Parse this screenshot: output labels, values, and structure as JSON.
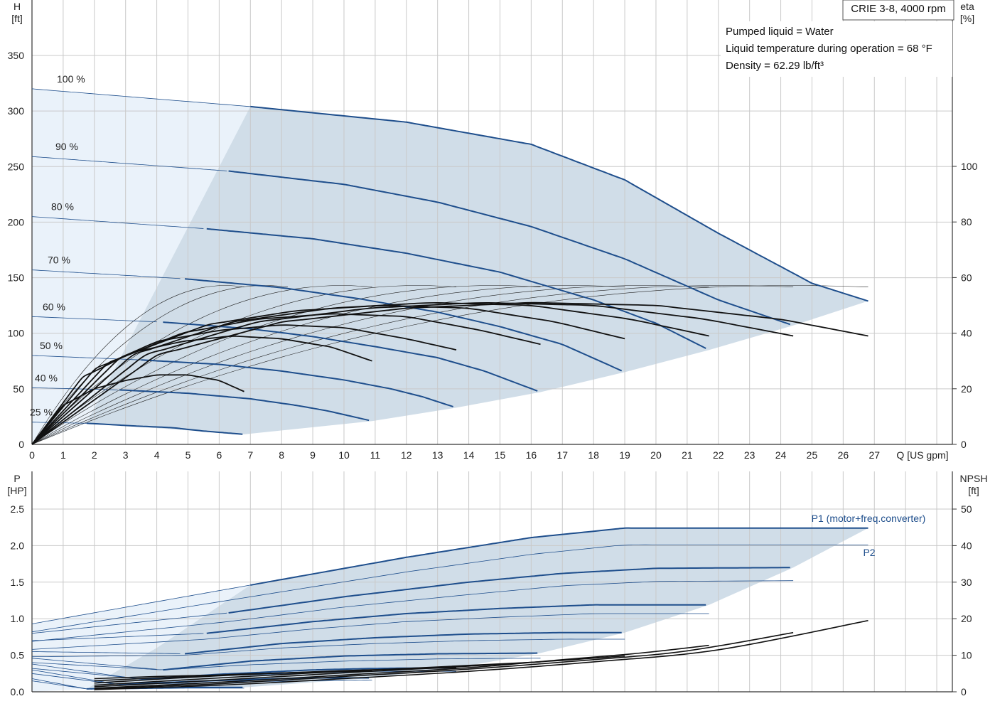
{
  "chart_data": [
    {
      "type": "line",
      "name": "head-efficiency",
      "title": "CRIE 3-8, 4000 rpm",
      "info_lines": [
        "Pumped liquid = Water",
        "Liquid temperature during operation = 68 °F",
        "Density = 62.29 lb/ft³"
      ],
      "xlabel": "Q [US gpm]",
      "y_left_label": [
        "H",
        "[ft]"
      ],
      "y_right_label": [
        "eta",
        "[%]"
      ],
      "xlim": [
        0,
        29.5
      ],
      "ylim_left": [
        0,
        350
      ],
      "ylim_right": [
        0,
        140
      ],
      "x_ticks": [
        0,
        1,
        2,
        3,
        4,
        5,
        6,
        7,
        8,
        9,
        10,
        11,
        12,
        13,
        14,
        15,
        16,
        17,
        18,
        19,
        20,
        21,
        22,
        23,
        24,
        25,
        26,
        27
      ],
      "y_left_ticks": [
        0,
        50,
        100,
        150,
        200,
        250,
        300,
        350
      ],
      "y_right_ticks": [
        0,
        20,
        40,
        60,
        80,
        100
      ],
      "grid": true,
      "speed_labels": [
        "100 %",
        "90 %",
        "80 %",
        "70 %",
        "60 %",
        "50 %",
        "40 %",
        "25 %"
      ],
      "head_curves": [
        {
          "label": "100 %",
          "x": [
            0,
            7,
            12,
            16,
            19,
            22,
            25,
            26.8
          ],
          "y": [
            320,
            304,
            290,
            270,
            238,
            190,
            145,
            129
          ],
          "x_start_bold": 7
        },
        {
          "label": "90 %",
          "x": [
            0,
            6.3,
            10,
            13,
            16,
            19,
            22,
            24.4
          ],
          "y": [
            259,
            246,
            234,
            218,
            196,
            167,
            130,
            107
          ],
          "x_start_bold": 6.3
        },
        {
          "label": "80 %",
          "x": [
            0,
            5.6,
            9,
            12,
            15,
            18,
            20,
            21.7
          ],
          "y": [
            205,
            194,
            185,
            172,
            155,
            130,
            109,
            85
          ],
          "x_start_bold": 5.6
        },
        {
          "label": "70 %",
          "x": [
            0,
            4.9,
            8,
            10.5,
            13,
            15,
            17,
            19
          ],
          "y": [
            157,
            149,
            141,
            131,
            119,
            106,
            90,
            65
          ],
          "x_start_bold": 4.9
        },
        {
          "label": "60 %",
          "x": [
            0,
            4.2,
            7,
            9,
            11,
            13,
            14.5,
            16.3
          ],
          "y": [
            115,
            110,
            104,
            97,
            88,
            78,
            66,
            47
          ],
          "x_start_bold": 4.2
        },
        {
          "label": "50 %",
          "x": [
            0,
            3.5,
            6,
            8,
            10,
            11.5,
            12.5,
            13.6
          ],
          "y": [
            80,
            76,
            72,
            66,
            58,
            50,
            43,
            33
          ],
          "x_start_bold": 3.5
        },
        {
          "label": "40 %",
          "x": [
            0,
            2.8,
            5,
            7,
            8.5,
            9.5,
            10.9
          ],
          "y": [
            51,
            49,
            46,
            41,
            35,
            30,
            21
          ],
          "x_start_bold": 2.8
        },
        {
          "label": "25 %",
          "x": [
            0,
            1.75,
            3,
            4.5,
            5.5,
            6.8
          ],
          "y": [
            20,
            19,
            17,
            15,
            12,
            9
          ],
          "x_start_bold": 1.75
        }
      ],
      "operating_area": {
        "x": [
          7,
          12,
          16,
          19,
          22,
          25,
          26.8,
          24.4,
          21.7,
          19,
          16.3,
          13.6,
          10.9,
          6.8,
          1.75,
          4,
          7
        ],
        "y": [
          304,
          290,
          270,
          238,
          190,
          145,
          129,
          107,
          85,
          65,
          47,
          33,
          21,
          9,
          19,
          100,
          304
        ]
      },
      "efficiency_curves": [
        {
          "label": "100 %",
          "x": [
            0,
            4,
            8,
            12,
            16,
            20,
            24,
            26.8
          ],
          "eta": [
            0,
            32,
            44,
            49,
            51,
            50,
            45,
            39
          ]
        },
        {
          "label": "90 %",
          "x": [
            0,
            3.6,
            7.2,
            10.8,
            14.4,
            18,
            21.6,
            24.4
          ],
          "eta": [
            0,
            32,
            44,
            49,
            51,
            50,
            45,
            39
          ]
        },
        {
          "label": "80 %",
          "x": [
            0,
            3.2,
            6.4,
            9.6,
            12.8,
            16,
            19.2,
            21.7
          ],
          "eta": [
            0,
            32,
            44,
            49,
            51,
            50,
            45,
            39
          ]
        },
        {
          "label": "70 %",
          "x": [
            0,
            2.8,
            5.6,
            8.4,
            11.2,
            14,
            16.8,
            19
          ],
          "eta": [
            0,
            31,
            43,
            48,
            50,
            49,
            44,
            38
          ]
        },
        {
          "label": "60 %",
          "x": [
            0,
            2.4,
            4.8,
            7.2,
            9.6,
            12,
            14.4,
            16.3
          ],
          "eta": [
            0,
            29,
            40,
            45,
            47,
            46,
            41,
            36
          ]
        },
        {
          "label": "50 %",
          "x": [
            0,
            2,
            4,
            6,
            8,
            10,
            12,
            13.6
          ],
          "eta": [
            0,
            27,
            37,
            41,
            43,
            42,
            38,
            34
          ]
        },
        {
          "label": "40 %",
          "x": [
            0,
            1.6,
            3.2,
            4.8,
            6.4,
            8,
            9.6,
            10.9
          ],
          "eta": [
            0,
            24,
            33,
            37,
            39,
            38,
            35,
            30
          ]
        },
        {
          "label": "25 %",
          "x": [
            0,
            1,
            2,
            3,
            4,
            5,
            6,
            6.8
          ],
          "eta": [
            0,
            14,
            20,
            23,
            25,
            25,
            23,
            19
          ]
        }
      ],
      "thin_curves_x_ends": [
        26.8,
        24.4,
        21.7,
        19,
        16.3,
        13.6,
        10.9,
        8.2,
        6.8
      ]
    },
    {
      "type": "line",
      "name": "power-npsh",
      "xlim": [
        0,
        29.5
      ],
      "y_left_label": [
        "P",
        "[HP]"
      ],
      "y_right_label": [
        "NPSH",
        "[ft]"
      ],
      "ylim_left": [
        0,
        2.5
      ],
      "ylim_right": [
        0,
        50
      ],
      "y_left_ticks": [
        "0.0",
        "0.5",
        "1.0",
        "1.5",
        "2.0",
        "2.5"
      ],
      "y_right_ticks": [
        0,
        10,
        20,
        30,
        40,
        50
      ],
      "p1_label": "P1 (motor+freq.converter)",
      "p2_label": "P2",
      "p1_curves": [
        {
          "label": "100 %",
          "x": [
            0,
            7,
            12,
            16,
            19,
            22,
            26.8
          ],
          "y": [
            0.93,
            1.46,
            1.84,
            2.11,
            2.24,
            2.24,
            2.24
          ],
          "x_start_bold": 7
        },
        {
          "label": "90 %",
          "x": [
            0,
            6.3,
            10,
            14,
            17,
            20,
            24.4
          ],
          "y": [
            0.8,
            1.08,
            1.3,
            1.5,
            1.62,
            1.69,
            1.7
          ],
          "x_start_bold": 6.3
        },
        {
          "label": "80 %",
          "x": [
            0,
            5.6,
            9,
            12,
            15,
            18,
            21.7
          ],
          "y": [
            0.7,
            0.8,
            0.96,
            1.07,
            1.14,
            1.19,
            1.19
          ],
          "x_start_bold": 5.6
        },
        {
          "label": "70 %",
          "x": [
            0,
            4.9,
            8,
            11,
            14,
            17,
            19
          ],
          "y": [
            0.55,
            0.52,
            0.66,
            0.74,
            0.79,
            0.81,
            0.81
          ],
          "x_start_bold": 4.9
        },
        {
          "label": "60 %",
          "x": [
            0,
            4.2,
            7,
            10,
            13,
            16.3
          ],
          "y": [
            0.46,
            0.3,
            0.42,
            0.49,
            0.52,
            0.53
          ],
          "x_start_bold": 4.2
        },
        {
          "label": "50 %",
          "x": [
            0,
            3.5,
            6,
            9,
            11,
            13.6
          ],
          "y": [
            0.38,
            0.17,
            0.24,
            0.3,
            0.32,
            0.33
          ],
          "x_start_bold": 3.5
        },
        {
          "label": "40 %",
          "x": [
            0,
            2.8,
            5,
            7,
            9,
            10.9
          ],
          "y": [
            0.3,
            0.1,
            0.14,
            0.17,
            0.19,
            0.19
          ],
          "x_start_bold": 2.8
        },
        {
          "label": "25 %",
          "x": [
            0,
            1.75,
            3,
            5,
            6.8
          ],
          "y": [
            0.18,
            0.04,
            0.05,
            0.06,
            0.06
          ],
          "x_start_bold": 1.75
        }
      ],
      "p2_curves": [
        {
          "label": "100 %",
          "x": [
            0,
            7,
            12,
            16,
            19,
            22,
            26.8
          ],
          "y": [
            0.82,
            1.3,
            1.64,
            1.88,
            2.01,
            2.01,
            2.01
          ]
        },
        {
          "label": "90 %",
          "x": [
            0,
            6.3,
            10,
            14,
            17,
            20,
            24.4
          ],
          "y": [
            0.69,
            0.96,
            1.16,
            1.33,
            1.45,
            1.51,
            1.52
          ]
        },
        {
          "label": "80 %",
          "x": [
            0,
            5.6,
            9,
            12,
            15,
            18,
            21.7
          ],
          "y": [
            0.58,
            0.72,
            0.86,
            0.96,
            1.02,
            1.07,
            1.07
          ]
        },
        {
          "label": "70 %",
          "x": [
            0,
            4.9,
            8,
            11,
            14,
            17,
            19
          ],
          "y": [
            0.48,
            0.5,
            0.6,
            0.66,
            0.7,
            0.72,
            0.72
          ]
        },
        {
          "label": "60 %",
          "x": [
            0,
            4.2,
            7,
            10,
            13,
            16.3
          ],
          "y": [
            0.4,
            0.3,
            0.37,
            0.42,
            0.45,
            0.46
          ]
        },
        {
          "label": "50 %",
          "x": [
            0,
            3.5,
            6,
            9,
            11,
            13.6
          ],
          "y": [
            0.32,
            0.18,
            0.22,
            0.26,
            0.28,
            0.28
          ]
        },
        {
          "label": "40 %",
          "x": [
            0,
            2.8,
            5,
            7,
            9,
            10.9
          ],
          "y": [
            0.25,
            0.1,
            0.12,
            0.14,
            0.15,
            0.16
          ]
        },
        {
          "label": "25 %",
          "x": [
            0,
            1.75,
            3,
            5,
            6.8
          ],
          "y": [
            0.15,
            0.04,
            0.04,
            0.05,
            0.05
          ]
        }
      ],
      "power_area": {
        "x": [
          7,
          12,
          16,
          19,
          22,
          26.8,
          24.4,
          21.7,
          19,
          16.3,
          13.6,
          10.9,
          6.8,
          1.75,
          3.5,
          5.6,
          7
        ],
        "y": [
          1.46,
          1.84,
          2.11,
          2.24,
          2.24,
          2.24,
          1.7,
          1.19,
          0.81,
          0.53,
          0.33,
          0.19,
          0.06,
          0.04,
          0.3,
          0.9,
          1.46
        ]
      },
      "npsh_curves": [
        {
          "label": "100 %",
          "x": [
            2,
            6,
            10,
            14,
            18,
            22,
            26.8
          ],
          "y": [
            0.6,
            1.8,
            3.6,
            5.6,
            8.2,
            11.5,
            19.5
          ]
        },
        {
          "label": "90 %",
          "x": [
            2,
            6,
            10,
            14,
            18,
            21,
            24.4
          ],
          "y": [
            0.8,
            2.2,
            4.2,
            6.2,
            8.8,
            11.2,
            16.2
          ]
        },
        {
          "label": "80 %",
          "x": [
            2,
            6,
            10,
            14,
            17,
            19.5,
            21.7
          ],
          "y": [
            1,
            2.6,
            4.6,
            6.6,
            8.8,
            10.6,
            12.7
          ]
        },
        {
          "label": "70 %",
          "x": [
            2,
            6,
            10,
            14,
            17,
            19
          ],
          "y": [
            1.4,
            3.2,
            5.2,
            7,
            8.6,
            9.8
          ]
        },
        {
          "label": "60 %",
          "x": [
            2,
            6,
            10,
            13,
            16.3
          ],
          "y": [
            1.8,
            3.8,
            5.6,
            6.8,
            8.2
          ]
        },
        {
          "label": "50 %",
          "x": [
            2,
            6,
            10,
            13.6
          ],
          "y": [
            2.4,
            4.4,
            5.8,
            6.6
          ]
        },
        {
          "label": "40 %",
          "x": [
            2,
            6,
            9,
            10.9
          ],
          "y": [
            3,
            4.6,
            5.4,
            5.7
          ]
        },
        {
          "label": "25 %",
          "x": [
            2,
            4,
            6,
            6.8
          ],
          "y": [
            3.6,
            4.2,
            4.6,
            4.7
          ]
        }
      ]
    }
  ],
  "colors": {
    "area": "#d0dde8",
    "area_light": "#eaf2fa",
    "curve_blue": "#1e4e8c",
    "curve_black": "#111111",
    "grid": "#c9c9c9",
    "axis": "#333333"
  }
}
